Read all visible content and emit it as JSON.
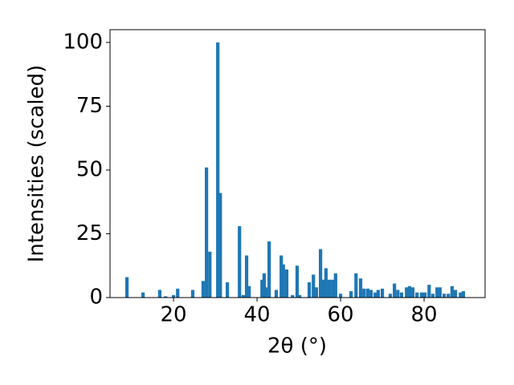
{
  "chart_data": {
    "type": "bar",
    "xlabel": "2θ (°)",
    "ylabel": "Intensities (scaled)",
    "color": "#1f77b4",
    "x": [
      8.85,
      12.7,
      16.7,
      18.1,
      20,
      21,
      24.6,
      27.1,
      27.9,
      28.7,
      30.6,
      31.2,
      32.9,
      35.8,
      36.7,
      37.5,
      38.1,
      41.2,
      41.7,
      42.1,
      42.9,
      44.6,
      45.8,
      46.3,
      47.1,
      48.5,
      49.6,
      50.2,
      52.5,
      53.5,
      54.2,
      55.2,
      55.8,
      56.5,
      57.3,
      58.1,
      58.8,
      60,
      62.5,
      63.7,
      64.8,
      65.6,
      66.5,
      67.3,
      68.3,
      69,
      70,
      71.9,
      72.9,
      73.7,
      74.6,
      75.8,
      76.5,
      77.3,
      78.3,
      79.4,
      80.2,
      81.2,
      82.1,
      83.1,
      83.8,
      84.8,
      85.8,
      86.7,
      87.5,
      88.7,
      89.4
    ],
    "values": [
      8,
      2,
      3,
      0.5,
      1,
      3.5,
      3,
      6.5,
      51,
      18,
      100,
      41,
      6,
      28,
      1,
      16.5,
      4.5,
      7,
      9.5,
      4,
      22,
      3,
      16.5,
      13,
      11,
      1,
      12.5,
      1,
      6,
      9,
      4,
      19,
      7,
      11.5,
      7,
      7,
      9.5,
      1.5,
      2.5,
      9.5,
      7.5,
      3.5,
      3.5,
      3,
      2,
      3,
      3.5,
      1.5,
      5.5,
      3,
      2,
      4,
      4.5,
      4,
      2,
      2,
      2,
      5,
      1.5,
      4,
      4,
      1.5,
      1.5,
      4.5,
      3,
      2,
      2.5
    ],
    "xlim": [
      4.8,
      94.6
    ],
    "ylim": [
      0,
      105
    ],
    "xticks": [
      20,
      40,
      60,
      80
    ],
    "yticks": [
      0,
      25,
      50,
      75,
      100
    ]
  }
}
